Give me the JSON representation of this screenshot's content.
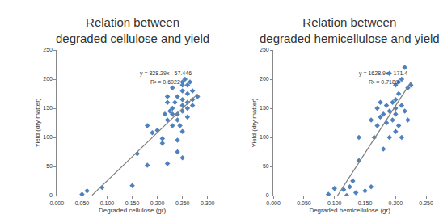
{
  "chart_data": [
    {
      "type": "scatter",
      "title": "Relation between\ndegraded cellulose and yield",
      "x_label": "Degraded cellulose (gr)",
      "y_label": "Yield (dry matter)",
      "annotations": [
        "y = 828.29x - 57.446",
        "R² = 0.6022"
      ],
      "xlim": [
        0,
        0.3
      ],
      "xticks": [
        {
          "value": 0,
          "label": "0.000"
        },
        {
          "value": 0.05,
          "label": "0.050"
        },
        {
          "value": 0.1,
          "label": "0.100"
        },
        {
          "value": 0.15,
          "label": "0.150"
        },
        {
          "value": 0.2,
          "label": "0.200"
        },
        {
          "value": 0.25,
          "label": "0.250"
        },
        {
          "value": 0.3,
          "label": "0.300"
        }
      ],
      "ylim": [
        0,
        250
      ],
      "yticks": [
        0,
        50,
        100,
        150,
        200,
        250
      ],
      "grid": false,
      "series": [
        {
          "type": "scatter",
          "color": "#4f81bd",
          "marker": "diamond",
          "x": [
            0.05,
            0.06,
            0.09,
            0.15,
            0.16,
            0.18,
            0.18,
            0.19,
            0.2,
            0.21,
            0.21,
            0.22,
            0.22,
            0.22,
            0.22,
            0.23,
            0.23,
            0.23,
            0.23,
            0.24,
            0.24,
            0.24,
            0.24,
            0.24,
            0.25,
            0.25,
            0.25,
            0.25,
            0.25,
            0.25,
            0.25,
            0.25,
            0.26,
            0.26,
            0.26,
            0.26,
            0.26,
            0.27,
            0.27,
            0.27,
            0.28,
            0.215,
            0.225,
            0.235,
            0.245,
            0.255,
            0.265
          ],
          "values": [
            2,
            8,
            14,
            17,
            72,
            120,
            52,
            108,
            112,
            98,
            90,
            55,
            170,
            160,
            130,
            185,
            140,
            120,
            150,
            170,
            130,
            140,
            95,
            75,
            195,
            190,
            180,
            165,
            155,
            145,
            110,
            65,
            190,
            175,
            160,
            150,
            135,
            180,
            165,
            155,
            170,
            140,
            145,
            160,
            120,
            200,
            195
          ]
        },
        {
          "type": "line",
          "color": "#808080",
          "x": [
            0.07,
            0.28
          ],
          "values": [
            0.5,
            174.5
          ]
        }
      ]
    },
    {
      "type": "scatter",
      "title": "Relation between\ndegraded hemicellulose and yield",
      "x_label": "Degraded hemicellulose (gr)",
      "y_label": "Yield (dry matter)",
      "annotations": [
        "y = 1628.9x - 171.4",
        "R² = 0.7189"
      ],
      "xlim": [
        0,
        0.25
      ],
      "xticks": [
        {
          "value": 0,
          "label": "0.000"
        },
        {
          "value": 0.05,
          "label": "0.050"
        },
        {
          "value": 0.1,
          "label": "0.100"
        },
        {
          "value": 0.15,
          "label": "0.150"
        },
        {
          "value": 0.2,
          "label": "0.200"
        },
        {
          "value": 0.25,
          "label": "0.250"
        }
      ],
      "ylim": [
        0,
        250
      ],
      "yticks": [
        0,
        50,
        100,
        150,
        200,
        250
      ],
      "grid": false,
      "series": [
        {
          "type": "scatter",
          "color": "#4f81bd",
          "marker": "diamond",
          "x": [
            0.09,
            0.1,
            0.115,
            0.12,
            0.125,
            0.13,
            0.135,
            0.14,
            0.14,
            0.15,
            0.16,
            0.16,
            0.17,
            0.17,
            0.175,
            0.18,
            0.18,
            0.185,
            0.185,
            0.19,
            0.19,
            0.195,
            0.195,
            0.2,
            0.2,
            0.2,
            0.2,
            0.205,
            0.205,
            0.205,
            0.21,
            0.21,
            0.21,
            0.215,
            0.215,
            0.22,
            0.22,
            0.225,
            0.175,
            0.19,
            0.2,
            0.165
          ],
          "values": [
            2,
            12,
            10,
            0,
            15,
            25,
            5,
            100,
            60,
            8,
            15,
            130,
            150,
            120,
            135,
            140,
            80,
            155,
            125,
            145,
            210,
            160,
            130,
            165,
            150,
            140,
            110,
            195,
            175,
            120,
            200,
            155,
            100,
            220,
            145,
            185,
            130,
            190,
            160,
            100,
            190,
            100
          ]
        },
        {
          "type": "line",
          "color": "#808080",
          "x": [
            0.105,
            0.225
          ],
          "values": [
            0,
            195
          ]
        }
      ]
    }
  ]
}
